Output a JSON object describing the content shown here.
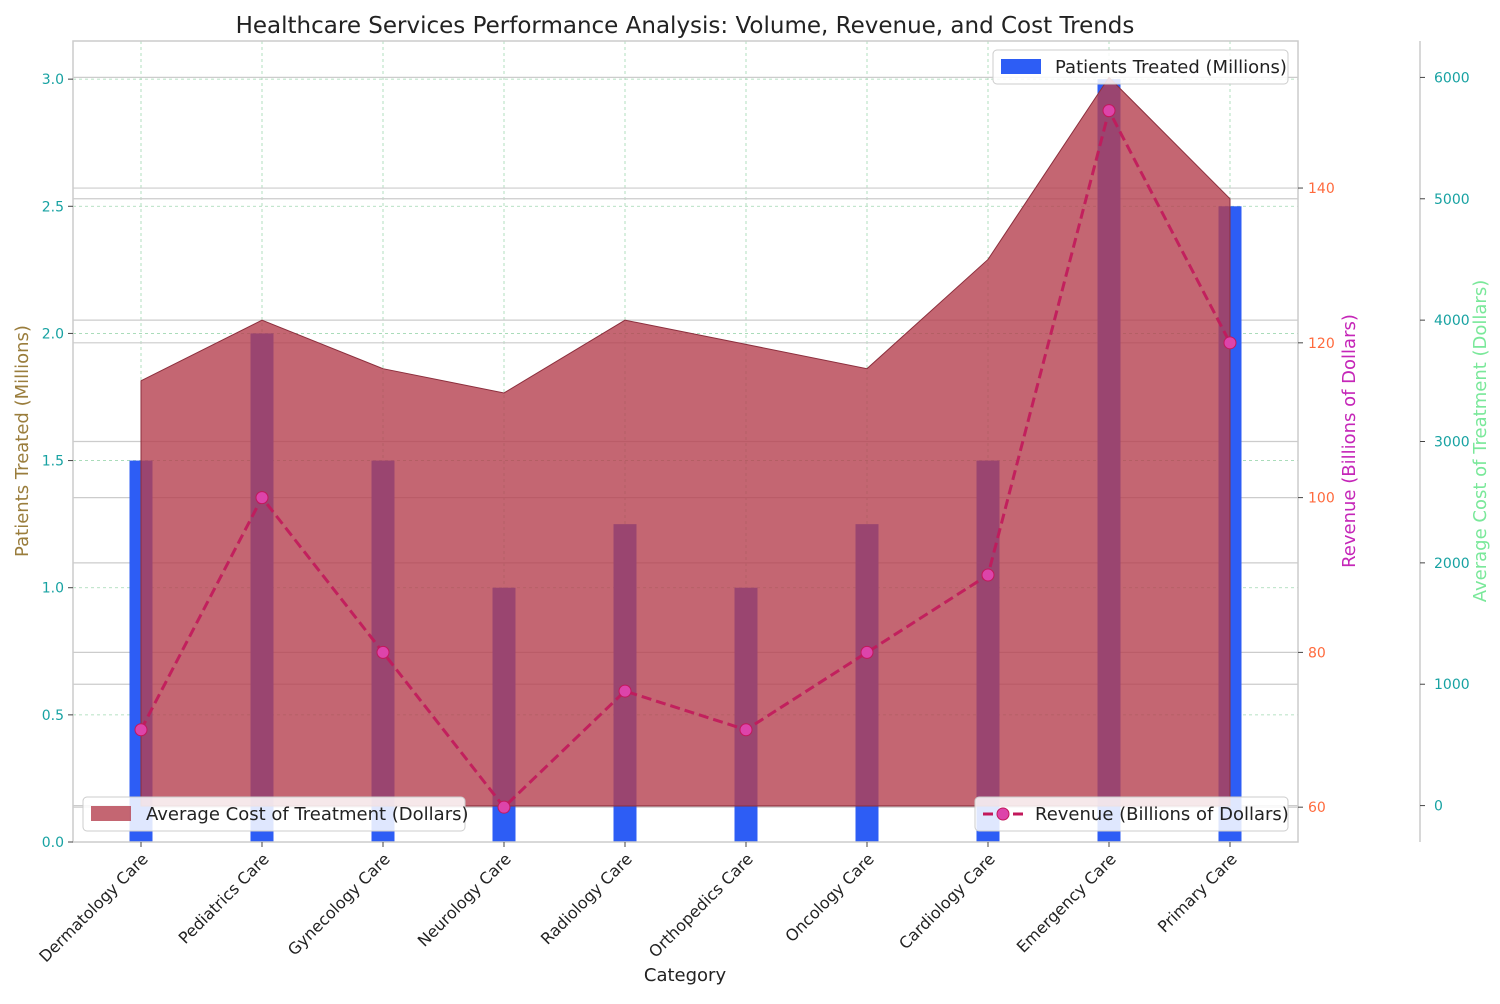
{
  "chart_data": {
    "type": "bar",
    "title": "Healthcare Services Performance Analysis: Volume, Revenue, and Cost Trends",
    "xlabel": "Category",
    "categories": [
      "Dermatology Care",
      "Pediatrics Care",
      "Gynecology Care",
      "Neurology Care",
      "Radiology Care",
      "Orthopedics Care",
      "Oncology Care",
      "Cardiology Care",
      "Emergency Care",
      "Primary Care"
    ],
    "axes": {
      "left": {
        "label": "Patients Treated (Millions)",
        "label_color": "#9a7d3c",
        "tick_color": "#17a2a2",
        "ylim": [
          0,
          3.15
        ],
        "ticks": [
          0.0,
          0.5,
          1.0,
          1.5,
          2.0,
          2.5,
          3.0
        ],
        "tick_labels": [
          "0.0",
          "0.5",
          "1.0",
          "1.5",
          "2.0",
          "2.5",
          "3.0"
        ]
      },
      "right1": {
        "label": "Revenue (Billions of Dollars)",
        "label_color": "#c526b8",
        "tick_color": "#ff6a3d",
        "ylim": [
          55.5,
          159
        ],
        "ticks": [
          60,
          80,
          100,
          120,
          140
        ],
        "tick_labels": [
          "60",
          "80",
          "100",
          "120",
          "140"
        ]
      },
      "right2": {
        "label": "Average Cost of Treatment (Dollars)",
        "label_color": "#7ae89a",
        "tick_color": "#17a2a2",
        "ylim": [
          -300,
          6300
        ],
        "ticks": [
          0,
          1000,
          2000,
          3000,
          4000,
          5000,
          6000
        ],
        "tick_labels": [
          "0",
          "1000",
          "2000",
          "3000",
          "4000",
          "5000",
          "6000"
        ]
      }
    },
    "series": [
      {
        "name": "Patients Treated (Millions)",
        "kind": "bar",
        "axis": "left",
        "color": "#2d5df5",
        "values": [
          1.5,
          2.0,
          1.5,
          1.0,
          1.25,
          1.0,
          1.25,
          1.5,
          3.0,
          2.5
        ]
      },
      {
        "name": "Revenue (Billions of Dollars)",
        "kind": "line",
        "axis": "right1",
        "color": "#c2185b",
        "marker_color": "#dd44aa",
        "values": [
          70,
          100,
          80,
          60,
          75,
          70,
          80,
          90,
          150,
          120
        ]
      },
      {
        "name": "Average Cost of Treatment (Dollars)",
        "kind": "area",
        "axis": "right2",
        "color": "#b5404f",
        "values": [
          3500,
          4000,
          3600,
          3400,
          4000,
          3800,
          3600,
          4500,
          6000,
          5000
        ]
      }
    ],
    "legends": [
      {
        "label": "Patients Treated (Millions)",
        "placement": "upper right"
      },
      {
        "label": "Average Cost of Treatment (Dollars)",
        "placement": "lower left"
      },
      {
        "label": "Revenue (Billions of Dollars)",
        "placement": "lower right"
      }
    ],
    "grid": true
  }
}
